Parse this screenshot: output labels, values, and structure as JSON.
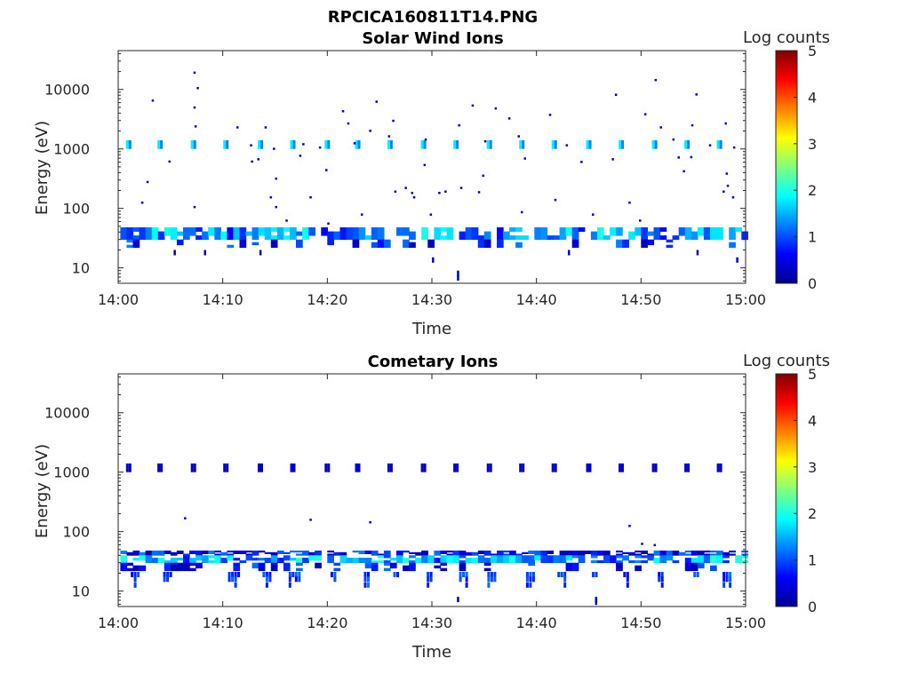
{
  "figure": {
    "title": "RPCICA160811T14.PNG"
  },
  "chart_data": [
    {
      "type": "heatmap",
      "title": "Solar Wind Ions",
      "xlabel": "Time",
      "ylabel": "Energy (eV)",
      "x_ticks": [
        "14:00",
        "14:10",
        "14:20",
        "14:30",
        "14:40",
        "14:50",
        "15:00"
      ],
      "y_ticks": [
        "10",
        "100",
        "1000",
        "10000"
      ],
      "y_scale": "log",
      "ylim": [
        5.5,
        45000
      ],
      "xlim_minutes": [
        0,
        60
      ],
      "colorbar": {
        "label": "Log counts",
        "ticks": [
          "0",
          "1",
          "2",
          "3",
          "4",
          "5"
        ],
        "range": [
          0,
          5
        ]
      },
      "bands": [
        {
          "energy_eV": [
            30,
            48
          ],
          "level": 1.3,
          "t_step_min": 0.6,
          "coverage": 0.85
        },
        {
          "energy_eV": [
            22,
            30
          ],
          "level": 0.6,
          "t_step_min": 0.6,
          "coverage": 0.25
        }
      ],
      "pulses_1keV_min": [
        1.0,
        4.0,
        7.2,
        10.3,
        13.6,
        16.7,
        20.0,
        22.9,
        26.0,
        29.2,
        32.3,
        35.5,
        38.6,
        41.7,
        45.0,
        48.1,
        51.3,
        54.4,
        57.5
      ],
      "pulse_level": 1.8,
      "sparse_points": [
        [
          2.2,
          130
        ],
        [
          2.7,
          290
        ],
        [
          3.2,
          6800
        ],
        [
          4.8,
          640
        ],
        [
          7.2,
          20000
        ],
        [
          7.2,
          5200
        ],
        [
          7.3,
          2500
        ],
        [
          7.5,
          11000
        ],
        [
          7.2,
          110
        ],
        [
          11.3,
          2400
        ],
        [
          12.6,
          1200
        ],
        [
          13.3,
          700
        ],
        [
          14.0,
          2400
        ],
        [
          14.5,
          160
        ],
        [
          15.0,
          330
        ],
        [
          15.0,
          110
        ],
        [
          16.0,
          65
        ],
        [
          17.3,
          800
        ],
        [
          18.3,
          160
        ],
        [
          19.2,
          1100
        ],
        [
          19.8,
          460
        ],
        [
          20.0,
          58
        ],
        [
          21.4,
          4500
        ],
        [
          21.9,
          2800
        ],
        [
          22.5,
          1300
        ],
        [
          23.2,
          82
        ],
        [
          24.0,
          2100
        ],
        [
          24.6,
          6500
        ],
        [
          25.8,
          1700
        ],
        [
          26.2,
          3100
        ],
        [
          26.4,
          200
        ],
        [
          27.4,
          230
        ],
        [
          28.0,
          190
        ],
        [
          28.2,
          160
        ],
        [
          29.2,
          560
        ],
        [
          29.8,
          82
        ],
        [
          30.6,
          190
        ],
        [
          31.2,
          200
        ],
        [
          32.5,
          2600
        ],
        [
          32.7,
          230
        ],
        [
          33.8,
          5600
        ],
        [
          34.4,
          195
        ],
        [
          34.8,
          370
        ],
        [
          35.0,
          1400
        ],
        [
          36.0,
          5000
        ],
        [
          37.3,
          3400
        ],
        [
          38.2,
          1700
        ],
        [
          38.5,
          90
        ],
        [
          41.2,
          3900
        ],
        [
          41.7,
          145
        ],
        [
          42.8,
          1200
        ],
        [
          44.2,
          630
        ],
        [
          45.3,
          82
        ],
        [
          47.2,
          700
        ],
        [
          47.5,
          8500
        ],
        [
          48.8,
          130
        ],
        [
          49.8,
          65
        ],
        [
          50.3,
          4000
        ],
        [
          51.3,
          15000
        ],
        [
          51.8,
          2400
        ],
        [
          53.0,
          1500
        ],
        [
          53.5,
          750
        ],
        [
          54.0,
          440
        ],
        [
          54.8,
          2600
        ],
        [
          55.2,
          8600
        ],
        [
          56.5,
          1200
        ],
        [
          57.8,
          200
        ],
        [
          58.0,
          2800
        ],
        [
          58.1,
          400
        ],
        [
          58.2,
          250
        ],
        [
          58.7,
          160
        ],
        [
          58.8,
          1100
        ],
        [
          12.7,
          640
        ],
        [
          14.8,
          1050
        ],
        [
          17.6,
          1250
        ],
        [
          29.3,
          1500
        ],
        [
          38.8,
          720
        ],
        [
          54.7,
          760
        ]
      ],
      "low_points": [
        [
          5.3,
          20
        ],
        [
          8.2,
          20
        ],
        [
          13.5,
          20
        ],
        [
          30.0,
          15
        ],
        [
          32.4,
          9
        ],
        [
          32.4,
          7.5
        ],
        [
          43.0,
          20
        ],
        [
          55.3,
          20
        ],
        [
          59.1,
          15
        ]
      ]
    },
    {
      "type": "heatmap",
      "title": "Cometary Ions",
      "xlabel": "Time",
      "ylabel": "Energy (eV)",
      "x_ticks": [
        "14:00",
        "14:10",
        "14:20",
        "14:30",
        "14:40",
        "14:50",
        "15:00"
      ],
      "y_ticks": [
        "10",
        "100",
        "1000",
        "10000"
      ],
      "y_scale": "log",
      "ylim": [
        5.5,
        45000
      ],
      "xlim_minutes": [
        0,
        60
      ],
      "colorbar": {
        "label": "Log counts",
        "ticks": [
          "0",
          "1",
          "2",
          "3",
          "4",
          "5"
        ],
        "range": [
          0,
          5
        ]
      },
      "bands": [
        {
          "energy_eV": [
            40,
            48
          ],
          "level": 0.6,
          "t_step_min": 0.6,
          "coverage": 0.9
        },
        {
          "energy_eV": [
            30,
            40
          ],
          "level": 1.4,
          "t_step_min": 0.6,
          "coverage": 0.9
        },
        {
          "energy_eV": [
            22,
            30
          ],
          "level": 0.5,
          "t_step_min": 0.6,
          "coverage": 0.35
        }
      ],
      "pulses_1keV_min": [
        1.0,
        4.0,
        7.2,
        10.3,
        13.6,
        16.7,
        20.0,
        22.9,
        26.0,
        29.2,
        32.3,
        35.5,
        38.6,
        41.7,
        45.0,
        48.1,
        51.3,
        54.4,
        57.5
      ],
      "pulse_level": 0.4,
      "sparse_points": [
        [
          6.3,
          175
        ],
        [
          18.3,
          165
        ],
        [
          24.0,
          150
        ],
        [
          48.8,
          130
        ],
        [
          50.0,
          65
        ],
        [
          51.2,
          62
        ]
      ],
      "low_clusters_min": [
        1.2,
        4.3,
        10.5,
        13.8,
        16.3,
        20.3,
        23.5,
        26.3,
        29.5,
        32.6,
        35.3,
        39.0,
        42.0,
        45.3,
        48.3,
        51.6,
        55.0,
        57.8
      ],
      "low_points": [
        [
          32.4,
          8
        ],
        [
          45.6,
          8
        ],
        [
          45.6,
          7.2
        ]
      ]
    }
  ]
}
